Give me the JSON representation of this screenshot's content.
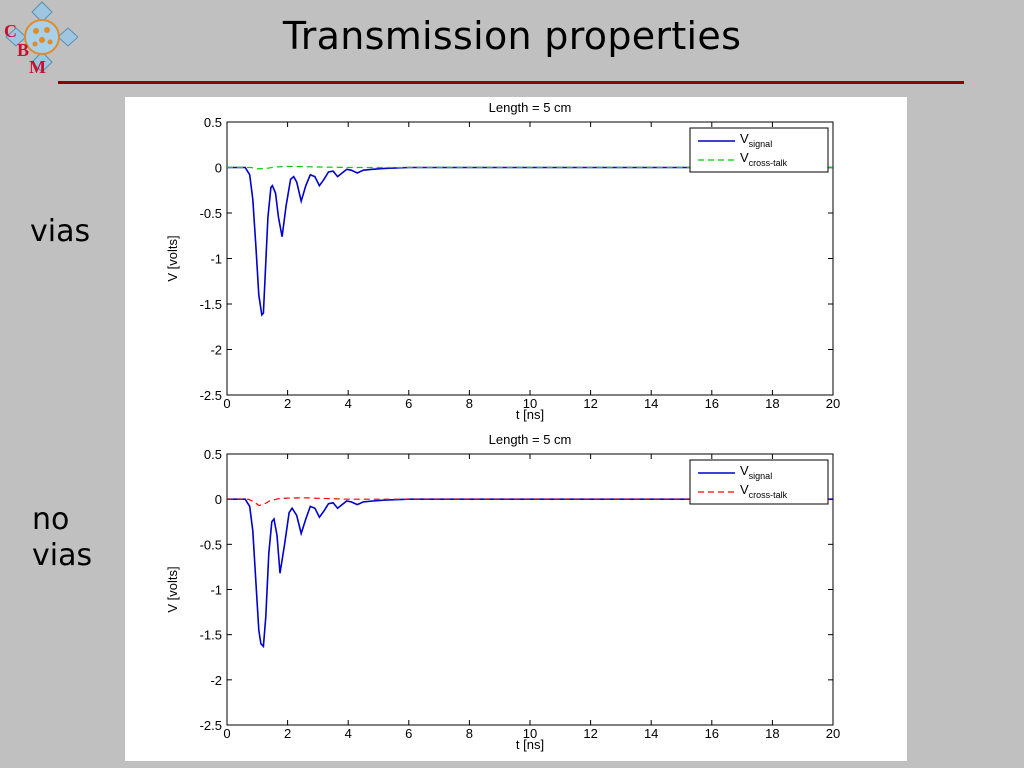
{
  "logo": {
    "letters": [
      "C",
      "B",
      "M"
    ]
  },
  "slide": {
    "title": "Transmission properties",
    "labels": {
      "top": "vias",
      "bottom_line1": "no",
      "bottom_line2": "vias"
    }
  },
  "colors": {
    "background": "#c0c0c0",
    "rule": "#8b0000",
    "signal": "#0000cc",
    "crosstalk_vias": "#00cc00",
    "crosstalk_novias": "#ff0000"
  },
  "chart_data": [
    {
      "type": "line",
      "title": "Length = 5 cm",
      "xlabel": "t [ns]",
      "ylabel": "V [volts]",
      "xlim": [
        0,
        20
      ],
      "ylim": [
        -2.5,
        0.5
      ],
      "xticks": [
        "0",
        "2",
        "4",
        "6",
        "8",
        "10",
        "12",
        "14",
        "16",
        "18",
        "20"
      ],
      "yticks": [
        "0.5",
        "0",
        "-0.5",
        "-1",
        "-1.5",
        "-2",
        "-2.5"
      ],
      "legend": {
        "placement": "top-right"
      },
      "series": [
        {
          "name": "V",
          "sub": "signal",
          "style": "solid",
          "color": "#0000cc",
          "x": [
            0,
            0.6,
            0.75,
            0.85,
            0.95,
            1.05,
            1.15,
            1.2,
            1.25,
            1.35,
            1.45,
            1.5,
            1.6,
            1.7,
            1.82,
            1.95,
            2.1,
            2.2,
            2.3,
            2.45,
            2.6,
            2.75,
            2.9,
            3.05,
            3.2,
            3.35,
            3.5,
            3.65,
            3.8,
            3.95,
            4.1,
            4.3,
            4.5,
            4.8,
            5.2,
            6,
            8,
            20
          ],
          "y": [
            0,
            0,
            -0.08,
            -0.35,
            -0.85,
            -1.4,
            -1.62,
            -1.6,
            -1.25,
            -0.55,
            -0.22,
            -0.2,
            -0.28,
            -0.55,
            -0.76,
            -0.42,
            -0.13,
            -0.1,
            -0.16,
            -0.37,
            -0.2,
            -0.08,
            -0.1,
            -0.2,
            -0.13,
            -0.05,
            -0.04,
            -0.1,
            -0.06,
            -0.02,
            -0.03,
            -0.06,
            -0.03,
            -0.02,
            -0.01,
            0,
            0,
            0
          ]
        },
        {
          "name": "V",
          "sub": "cross-talk",
          "style": "dashed",
          "color": "#00cc00",
          "x": [
            0,
            0.8,
            1.0,
            1.3,
            1.6,
            2.0,
            2.5,
            3.0,
            3.5,
            4.0,
            5.0,
            20
          ],
          "y": [
            0,
            0,
            -0.015,
            -0.01,
            0.005,
            0.012,
            0.01,
            0.005,
            0.003,
            0,
            0,
            0
          ]
        }
      ]
    },
    {
      "type": "line",
      "title": "Length = 5 cm",
      "xlabel": "t [ns]",
      "ylabel": "V [volts]",
      "xlim": [
        0,
        20
      ],
      "ylim": [
        -2.5,
        0.5
      ],
      "xticks": [
        "0",
        "2",
        "4",
        "6",
        "8",
        "10",
        "12",
        "14",
        "16",
        "18",
        "20"
      ],
      "yticks": [
        "0.5",
        "0",
        "-0.5",
        "-1",
        "-1.5",
        "-2",
        "-2.5"
      ],
      "legend": {
        "placement": "top-right"
      },
      "series": [
        {
          "name": "V",
          "sub": "signal",
          "style": "solid",
          "color": "#0000cc",
          "x": [
            0,
            0.6,
            0.75,
            0.85,
            0.95,
            1.05,
            1.12,
            1.2,
            1.28,
            1.38,
            1.48,
            1.55,
            1.65,
            1.75,
            1.9,
            2.05,
            2.15,
            2.3,
            2.45,
            2.6,
            2.75,
            2.9,
            3.05,
            3.2,
            3.35,
            3.5,
            3.65,
            3.8,
            3.95,
            4.1,
            4.3,
            4.5,
            4.8,
            5.2,
            6,
            8,
            20
          ],
          "y": [
            0,
            0,
            -0.08,
            -0.35,
            -0.9,
            -1.45,
            -1.6,
            -1.63,
            -1.3,
            -0.6,
            -0.25,
            -0.22,
            -0.4,
            -0.82,
            -0.5,
            -0.15,
            -0.1,
            -0.18,
            -0.38,
            -0.22,
            -0.08,
            -0.1,
            -0.2,
            -0.13,
            -0.05,
            -0.04,
            -0.1,
            -0.06,
            -0.02,
            -0.03,
            -0.06,
            -0.03,
            -0.02,
            -0.01,
            0,
            0,
            0
          ]
        },
        {
          "name": "V",
          "sub": "cross-talk",
          "style": "dashed",
          "color": "#ff0000",
          "x": [
            0,
            0.7,
            0.9,
            1.05,
            1.2,
            1.4,
            1.7,
            2.0,
            2.5,
            3.0,
            3.5,
            4.0,
            5.0,
            20
          ],
          "y": [
            0,
            0,
            -0.03,
            -0.07,
            -0.06,
            -0.02,
            0.005,
            0.012,
            0.015,
            0.01,
            0.005,
            0,
            0,
            0
          ]
        }
      ]
    }
  ]
}
